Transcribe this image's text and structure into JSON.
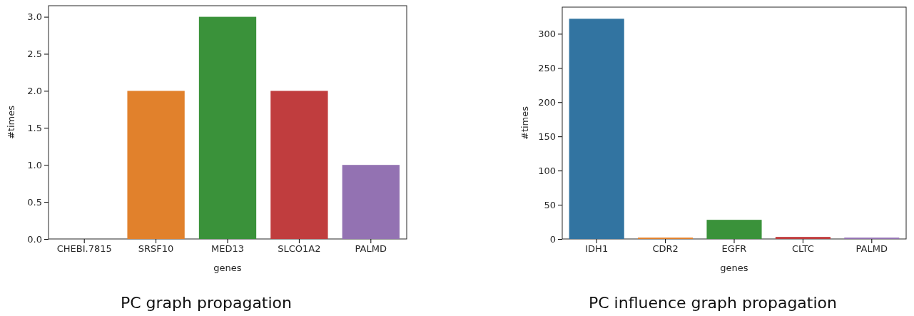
{
  "chart_data": [
    {
      "type": "bar",
      "title": "PC graph propagation",
      "xlabel": "genes",
      "ylabel": "#times",
      "categories": [
        "CHEBI.7815",
        "SRSF10",
        "MED13",
        "SLCO1A2",
        "PALMD"
      ],
      "values": [
        0,
        2,
        3,
        2,
        1
      ],
      "colors": [
        "#3274a1",
        "#e1812c",
        "#3a923a",
        "#c03d3e",
        "#9372b2"
      ],
      "ylim": [
        0,
        3.15
      ],
      "yticks": [
        {
          "value": 0,
          "label": "0.0"
        },
        {
          "value": 0.5,
          "label": "0.5"
        },
        {
          "value": 1,
          "label": "1.0"
        },
        {
          "value": 1.5,
          "label": "1.5"
        },
        {
          "value": 2,
          "label": "2.0"
        },
        {
          "value": 2.5,
          "label": "2.5"
        },
        {
          "value": 3,
          "label": "3.0"
        }
      ]
    },
    {
      "type": "bar",
      "title": "PC influence graph propagation",
      "xlabel": "genes",
      "ylabel": "#times",
      "categories": [
        "IDH1",
        "CDR2",
        "EGFR",
        "CLTC",
        "PALMD"
      ],
      "values": [
        322,
        2,
        28,
        3,
        2
      ],
      "colors": [
        "#3274a1",
        "#e1812c",
        "#3a923a",
        "#c03d3e",
        "#9372b2"
      ],
      "ylim": [
        0,
        339
      ],
      "yticks": [
        0,
        50,
        100,
        150,
        200,
        250,
        300
      ]
    }
  ]
}
